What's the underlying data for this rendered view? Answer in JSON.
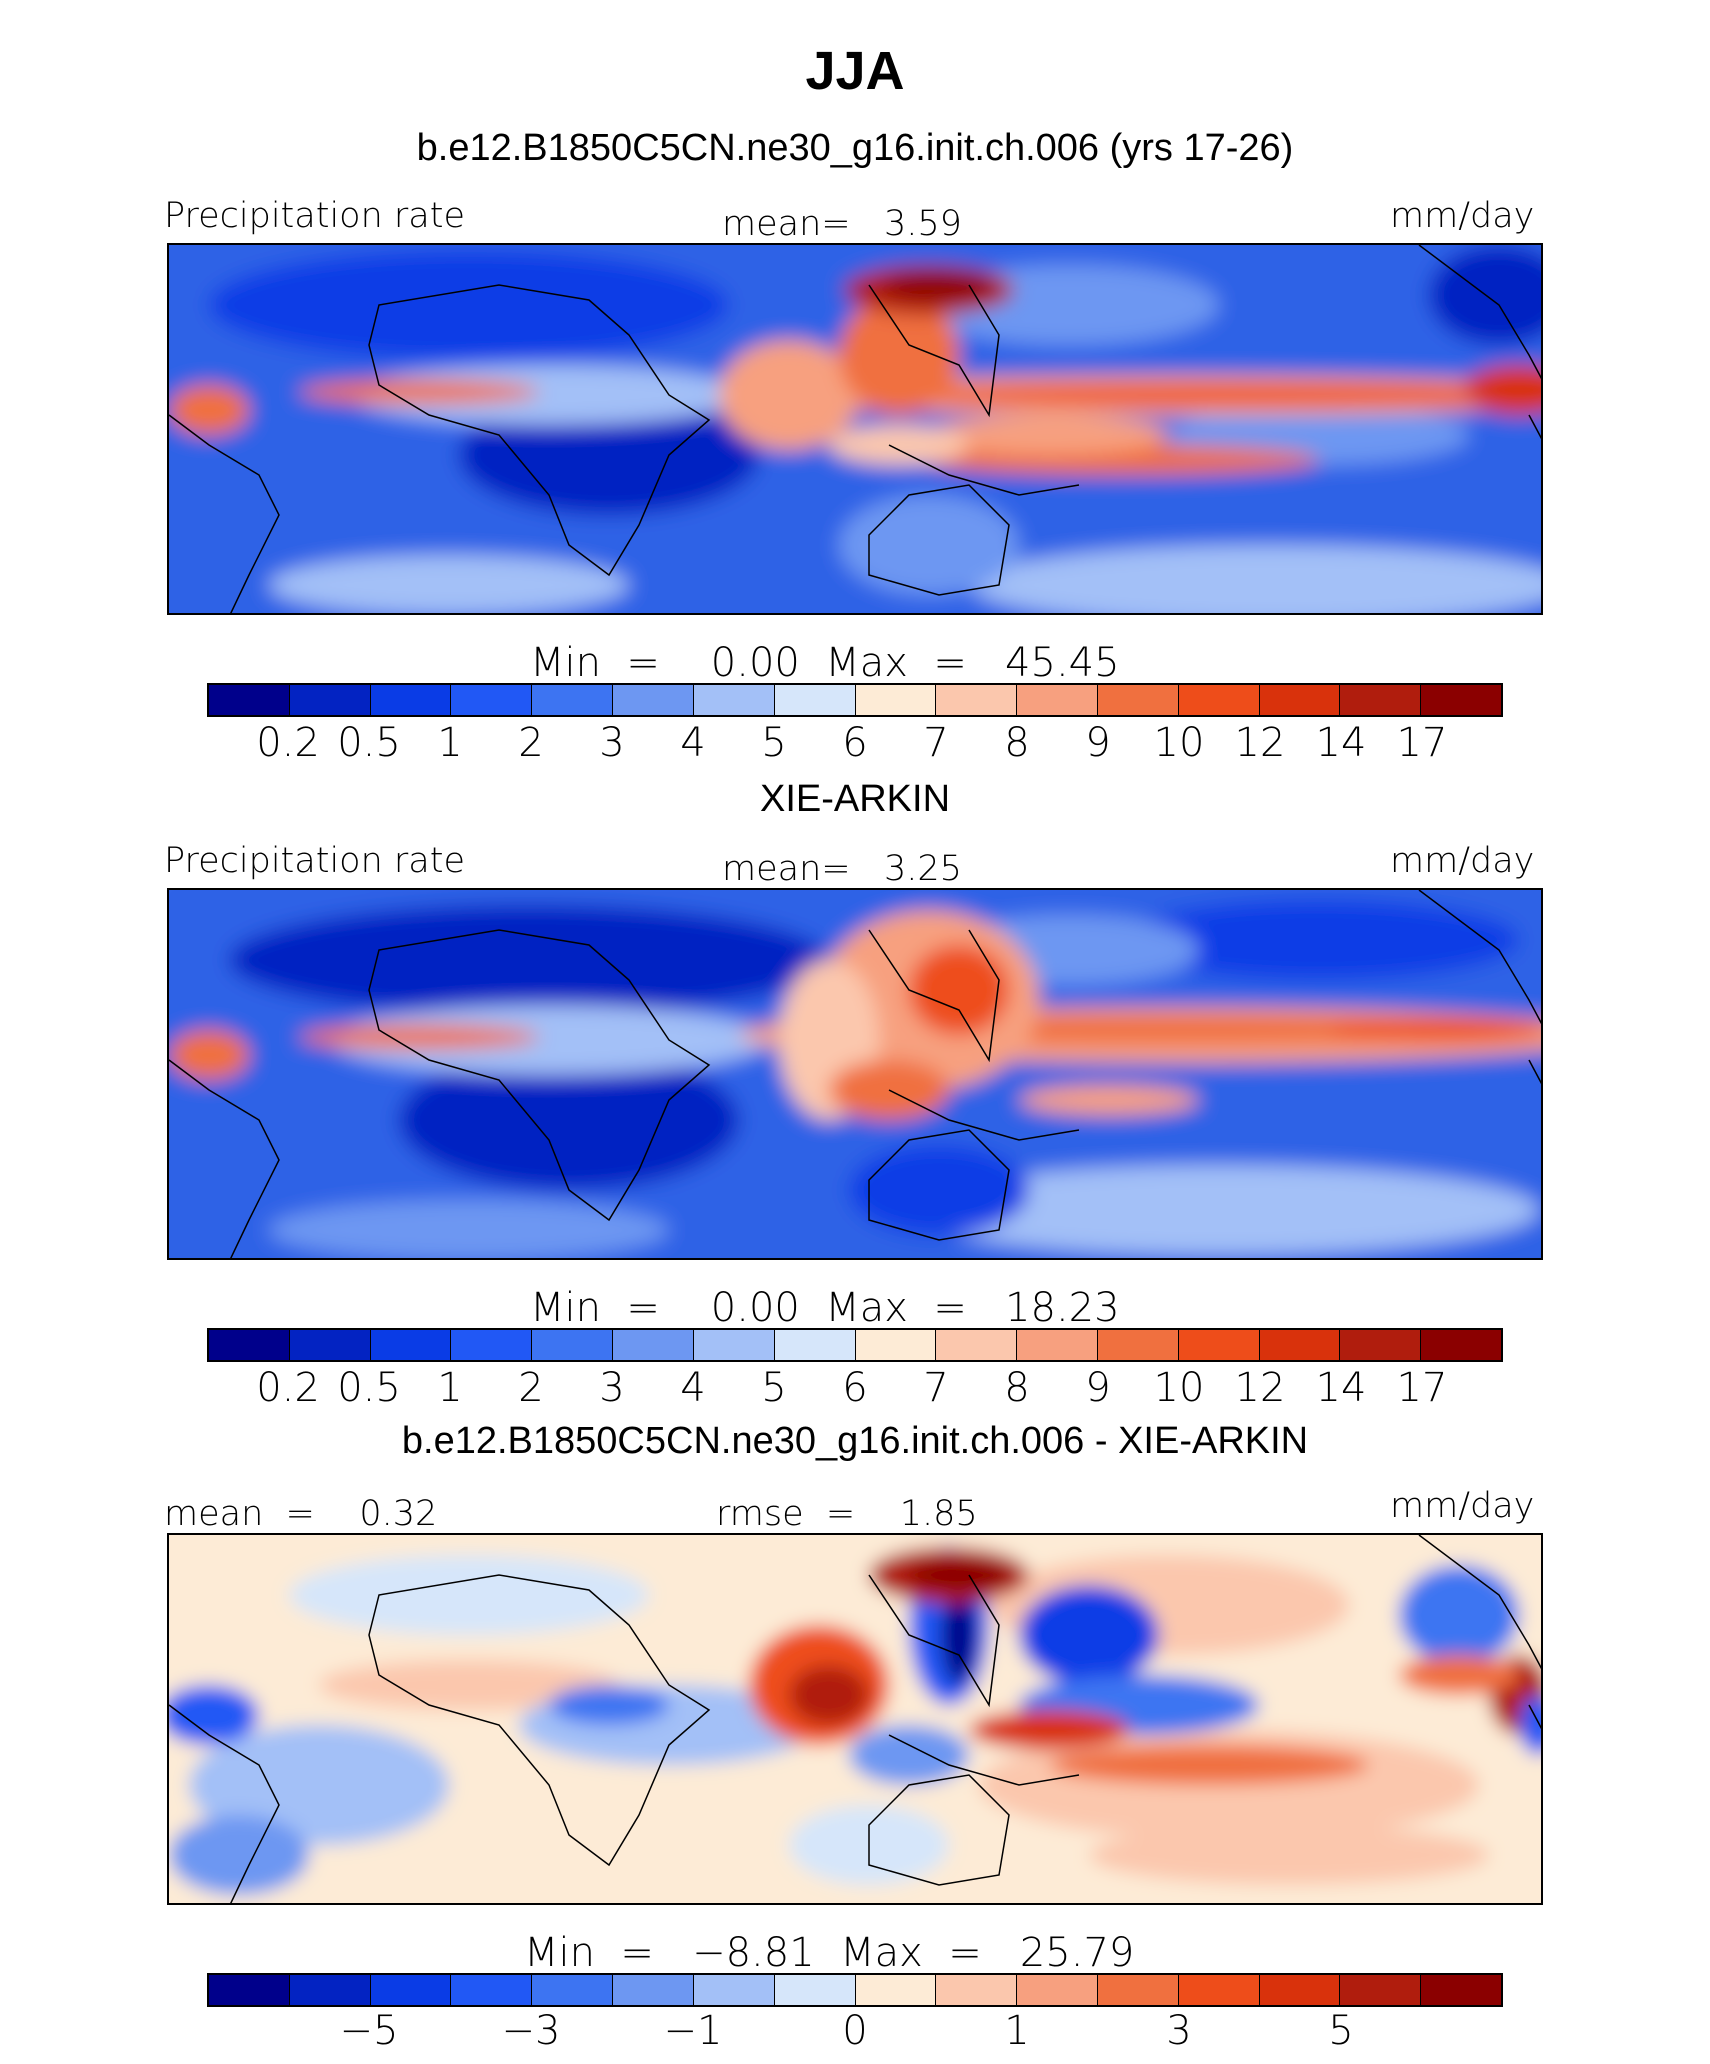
{
  "title": "JJA",
  "colors": {
    "precip_scale": [
      "#00008b",
      "#0323c2",
      "#0a3ce6",
      "#2158f5",
      "#3d74f2",
      "#6d97f2",
      "#a3c0f7",
      "#d6e6fa",
      "#fdebd6",
      "#fbc7ad",
      "#f7a07f",
      "#f0703f",
      "#ee4d1a",
      "#d9320c",
      "#b01d0d",
      "#8b0000"
    ],
    "diff_scale": [
      "#00008b",
      "#0323c2",
      "#0a3ce6",
      "#2158f5",
      "#3d74f2",
      "#6d97f2",
      "#a3c0f7",
      "#d6e6fa",
      "#fdebd6",
      "#fbc7ad",
      "#f7a07f",
      "#f0703f",
      "#ee4d1a",
      "#d9320c",
      "#b01d0d",
      "#8b0000"
    ]
  },
  "chart_data": [
    {
      "type": "heatmap",
      "title": "b.e12.B1850C5CN.ne30_g16.init.ch.006 (yrs 17-26)",
      "left_label": "Precipitation rate",
      "center_label": "mean=   3.59",
      "units": "mm/day",
      "stats": "Min  =    0.00  Max  =   45.45",
      "colorbar_levels": [
        "0.2",
        "0.5",
        "1",
        "2",
        "3",
        "4",
        "5",
        "6",
        "7",
        "8",
        "9",
        "10",
        "12",
        "14",
        "17"
      ]
    },
    {
      "type": "heatmap",
      "title": "XIE-ARKIN",
      "left_label": "Precipitation rate",
      "center_label": "mean=   3.25",
      "units": "mm/day",
      "stats": "Min  =    0.00  Max  =   18.23",
      "colorbar_levels": [
        "0.2",
        "0.5",
        "1",
        "2",
        "3",
        "4",
        "5",
        "6",
        "7",
        "8",
        "9",
        "10",
        "12",
        "14",
        "17"
      ]
    },
    {
      "type": "heatmap",
      "title": "b.e12.B1850C5CN.ne30_g16.init.ch.006 - XIE-ARKIN",
      "left_label": "mean  =    0.32",
      "center_label": "rmse  =    1.85",
      "units": "mm/day",
      "stats": "Min  =   −8.81  Max  =   25.79",
      "colorbar_levels": [
        "−5",
        "−3",
        "−1",
        "0",
        "1",
        "3",
        "5"
      ]
    }
  ]
}
